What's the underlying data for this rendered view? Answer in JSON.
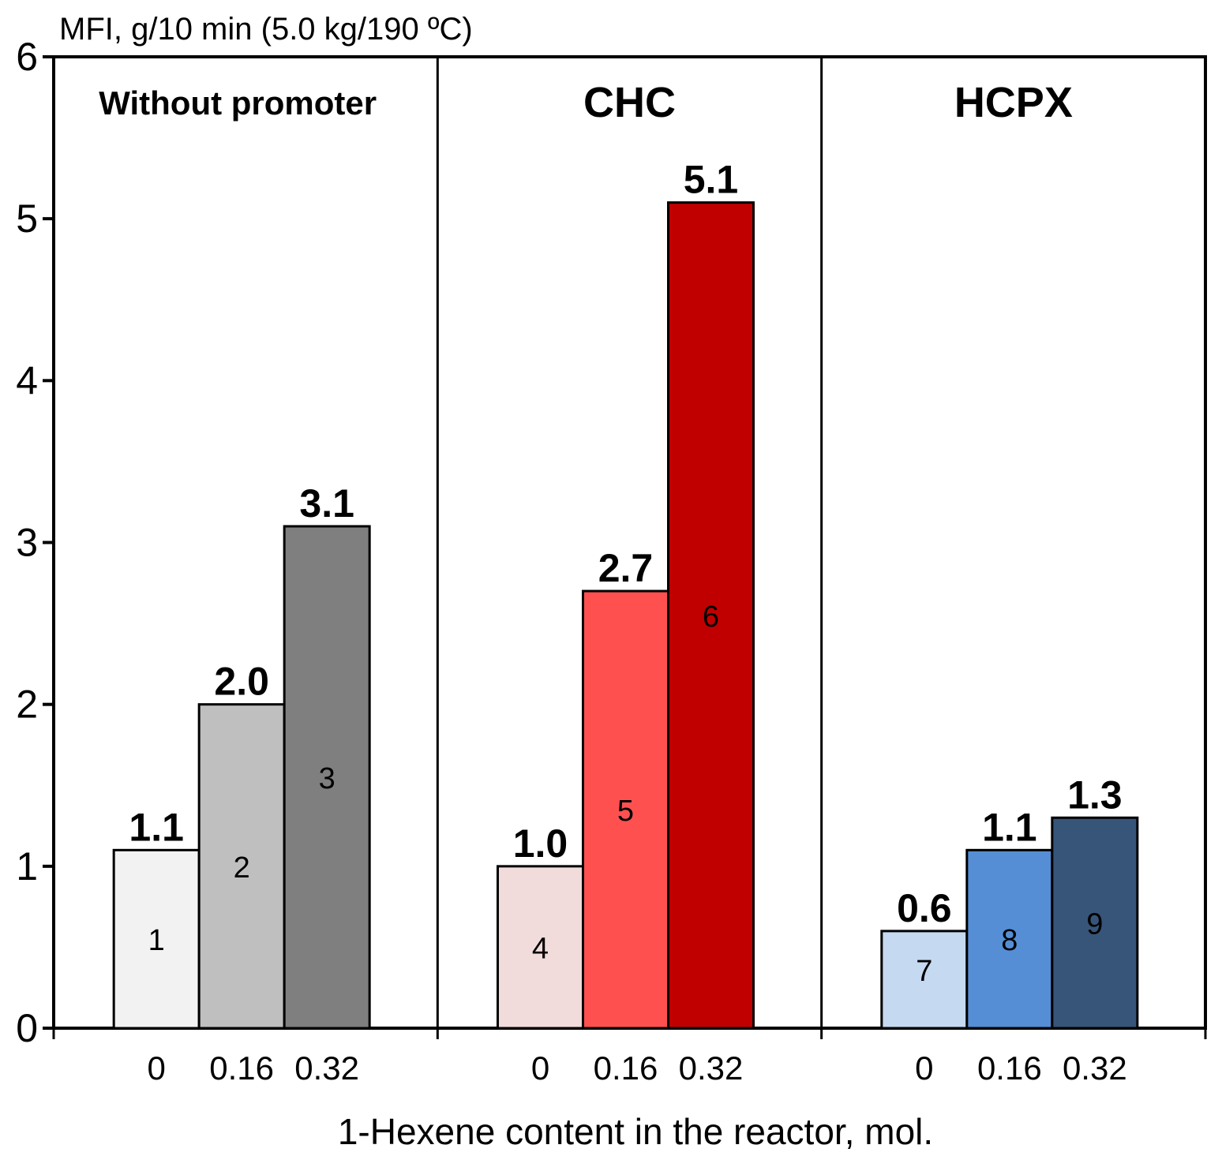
{
  "chart_data": {
    "type": "bar",
    "ylabel": "MFI, g/10 min (5.0 kg/190 ºC)",
    "xlabel": "1-Hexene content in the reactor, mol.",
    "ylim": [
      0,
      6
    ],
    "yticks": [
      "0",
      "1",
      "2",
      "3",
      "4",
      "5",
      "6"
    ],
    "panels": [
      {
        "title": "Without promoter",
        "categories": [
          "0",
          "0.16",
          "0.32"
        ],
        "values": [
          1.1,
          2.0,
          3.1
        ],
        "value_labels": [
          "1.1",
          "2.0",
          "3.1"
        ],
        "bar_numbers": [
          "1",
          "2",
          "3"
        ],
        "colors": [
          "#f2f2f2",
          "#bfbfbf",
          "#7f7f7f"
        ]
      },
      {
        "title": "CHC",
        "categories": [
          "0",
          "0.16",
          "0.32"
        ],
        "values": [
          1.0,
          2.7,
          5.1
        ],
        "value_labels": [
          "1.0",
          "2.7",
          "5.1"
        ],
        "bar_numbers": [
          "4",
          "5",
          "6"
        ],
        "colors": [
          "#f2dcdb",
          "#ff5050",
          "#c00000"
        ]
      },
      {
        "title": "HCPX",
        "categories": [
          "0",
          "0.16",
          "0.32"
        ],
        "values": [
          0.6,
          1.1,
          1.3
        ],
        "value_labels": [
          "0.6",
          "1.1",
          "1.3"
        ],
        "bar_numbers": [
          "7",
          "8",
          "9"
        ],
        "colors": [
          "#c5d9f1",
          "#558ed5",
          "#375579"
        ]
      }
    ]
  }
}
